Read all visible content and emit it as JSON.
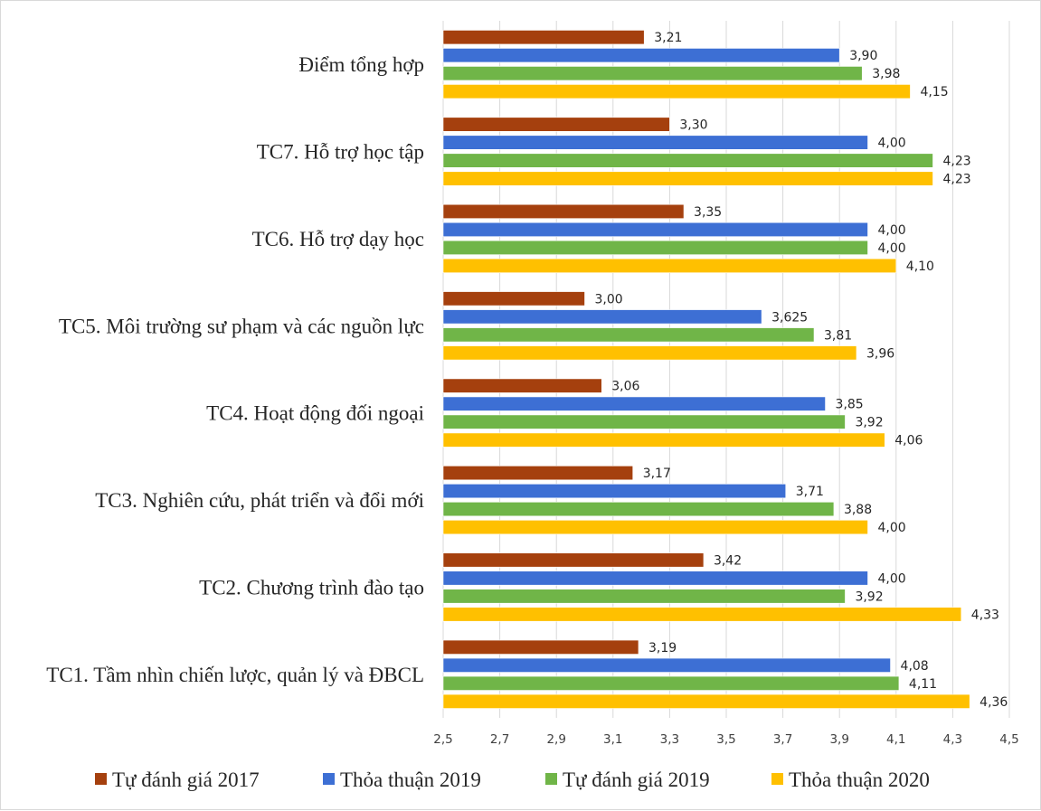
{
  "chart_data": {
    "type": "bar",
    "orientation": "horizontal",
    "categories": [
      "TC1. Tầm nhìn chiến lược, quản lý và ĐBCL",
      "TC2.  Chương trình đào tạo",
      "TC3.  Nghiên cứu, phát triển và đổi mới",
      "TC4.  Hoạt động đối ngoại",
      "TC5.  Môi trường sư phạm và các nguồn lực",
      "TC6.  Hỗ trợ dạy học",
      "TC7.  Hỗ trợ học tập",
      "Điểm tổng hợp"
    ],
    "series": [
      {
        "name": "Tự đánh giá  2017",
        "color": "#A5400E",
        "values": [
          3.19,
          3.42,
          3.17,
          3.06,
          3.0,
          3.35,
          3.3,
          3.21
        ],
        "labels": [
          "3,19",
          "3,42",
          "3,17",
          "3,06",
          "3,00",
          "3,35",
          "3,30",
          "3,21"
        ]
      },
      {
        "name": "Thỏa thuận 2019",
        "color": "#3D6FD4",
        "values": [
          4.08,
          4.0,
          3.71,
          3.85,
          3.625,
          4.0,
          4.0,
          3.9
        ],
        "labels": [
          "4,08",
          "4,00",
          "3,71",
          "3,85",
          "3,625",
          "4,00",
          "4,00",
          "3,90"
        ]
      },
      {
        "name": "Tự đánh giá  2019",
        "color": "#70B548",
        "values": [
          4.11,
          3.92,
          3.88,
          3.92,
          3.81,
          4.0,
          4.23,
          3.98
        ],
        "labels": [
          "4,11",
          "3,92",
          "3,88",
          "3,92",
          "3,81",
          "4,00",
          "4,23",
          "3,98"
        ]
      },
      {
        "name": "Thỏa thuận 2020",
        "color": "#FFC000",
        "values": [
          4.36,
          4.33,
          4.0,
          4.06,
          3.96,
          4.1,
          4.23,
          4.15
        ],
        "labels": [
          "4,36",
          "4,33",
          "4,00",
          "4,06",
          "3,96",
          "4,10",
          "4,23",
          "4,15"
        ]
      }
    ],
    "xlim": [
      2.5,
      4.5
    ],
    "xticks": [
      2.5,
      2.7,
      2.9,
      3.1,
      3.3,
      3.5,
      3.7,
      3.9,
      4.1,
      4.3,
      4.5
    ],
    "xtick_labels": [
      "2,5",
      "2,7",
      "2,9",
      "3,1",
      "3,3",
      "3,5",
      "3,7",
      "3,9",
      "4,1",
      "4,3",
      "4,5"
    ],
    "grid": true,
    "legend_position": "bottom",
    "title": "",
    "xlabel": "",
    "ylabel": ""
  }
}
